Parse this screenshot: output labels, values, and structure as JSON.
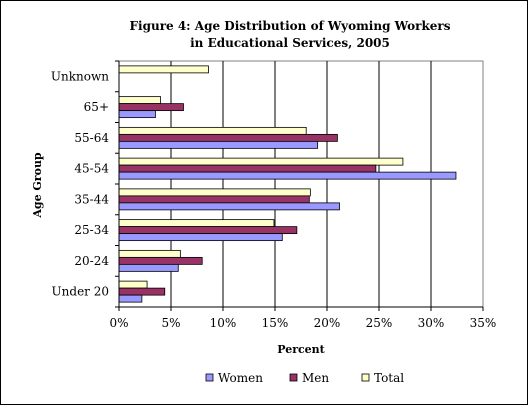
{
  "chart_data": {
    "type": "bar",
    "orientation": "horizontal",
    "title_line1": "Figure 4: Age Distribution of Wyoming Workers",
    "title_line2": "in Educational Services, 2005",
    "xlabel": "Percent",
    "ylabel": "Age Group",
    "xlim": [
      0,
      35
    ],
    "x_ticks": [
      "0%",
      "5%",
      "10%",
      "15%",
      "20%",
      "25%",
      "30%",
      "35%"
    ],
    "x_tick_values": [
      0,
      5,
      10,
      15,
      20,
      25,
      30,
      35
    ],
    "grid": "vertical",
    "legend_position": "bottom",
    "categories": [
      "Under 20",
      "20-24",
      "25-34",
      "35-44",
      "45-54",
      "55-64",
      "65+",
      "Unknown"
    ],
    "series": [
      {
        "name": "Women",
        "color": "#9999ff",
        "values": [
          2.2,
          5.7,
          15.7,
          21.2,
          32.4,
          19.1,
          3.5,
          0
        ]
      },
      {
        "name": "Men",
        "color": "#993366",
        "values": [
          4.4,
          8.0,
          17.1,
          18.3,
          24.7,
          21.0,
          6.2,
          0
        ]
      },
      {
        "name": "Total",
        "color": "#ffffcc",
        "values": [
          2.7,
          5.9,
          14.9,
          18.4,
          27.3,
          18.0,
          4.0,
          8.6
        ]
      }
    ]
  }
}
